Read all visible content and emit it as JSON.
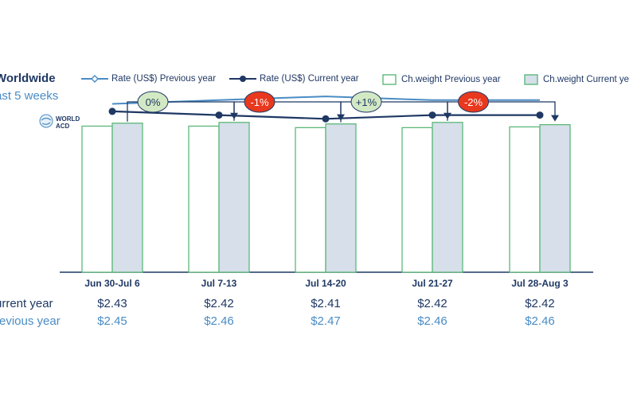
{
  "title": "Worldwide",
  "subtitle": "ast 5 weeks",
  "logo_text": [
    "WORLD",
    "ACD"
  ],
  "legend": [
    {
      "label": "Rate (US$) Previous year",
      "icon": "diamond-line-icon"
    },
    {
      "label": "Rate (US$) Current year",
      "icon": "dot-line-icon"
    },
    {
      "label": "Ch.weight Previous year",
      "icon": "outline-box-icon"
    },
    {
      "label": "Ch.weight Current ye",
      "icon": "filled-box-icon"
    }
  ],
  "row_labels": {
    "current": "urrent year",
    "previous": "revious year"
  },
  "colors": {
    "prev_bar_stroke": "#5cb87a",
    "cur_bar_fill": "#d6dfea",
    "cur_bar_stroke": "#5cb87a",
    "cur_line": "#1f3864",
    "prev_line": "#4a8cc4",
    "change_positive": "#d3e9c4",
    "change_negative": "#e8381e"
  },
  "chart_data": {
    "type": "bar",
    "categories": [
      "Jun 30-Jul 6",
      "Jul 7-13",
      "Jul 14-20",
      "Jul 21-27",
      "Jul 28-Aug 3"
    ],
    "series": [
      {
        "name": "Ch.weight Previous year",
        "values": [
          98,
          98,
          97,
          97,
          97.5
        ]
      },
      {
        "name": "Ch.weight Current year",
        "values": [
          100,
          100.5,
          99.5,
          100.5,
          99
        ]
      },
      {
        "name": "Rate (US$) Previous year",
        "values": [
          2.45,
          2.46,
          2.47,
          2.46,
          2.46
        ]
      },
      {
        "name": "Rate (US$) Current year",
        "values": [
          2.43,
          2.42,
          2.41,
          2.42,
          2.42
        ]
      }
    ],
    "current_year_rates": [
      "$2.43",
      "$2.42",
      "$2.41",
      "$2.42",
      "$2.42"
    ],
    "previous_year_rates": [
      "$2.45",
      "$2.46",
      "$2.47",
      "$2.46",
      "$2.46"
    ],
    "week_changes": [
      "0%",
      "-1%",
      "+1%",
      "-2%"
    ],
    "weight_ylim": [
      0,
      110
    ]
  }
}
